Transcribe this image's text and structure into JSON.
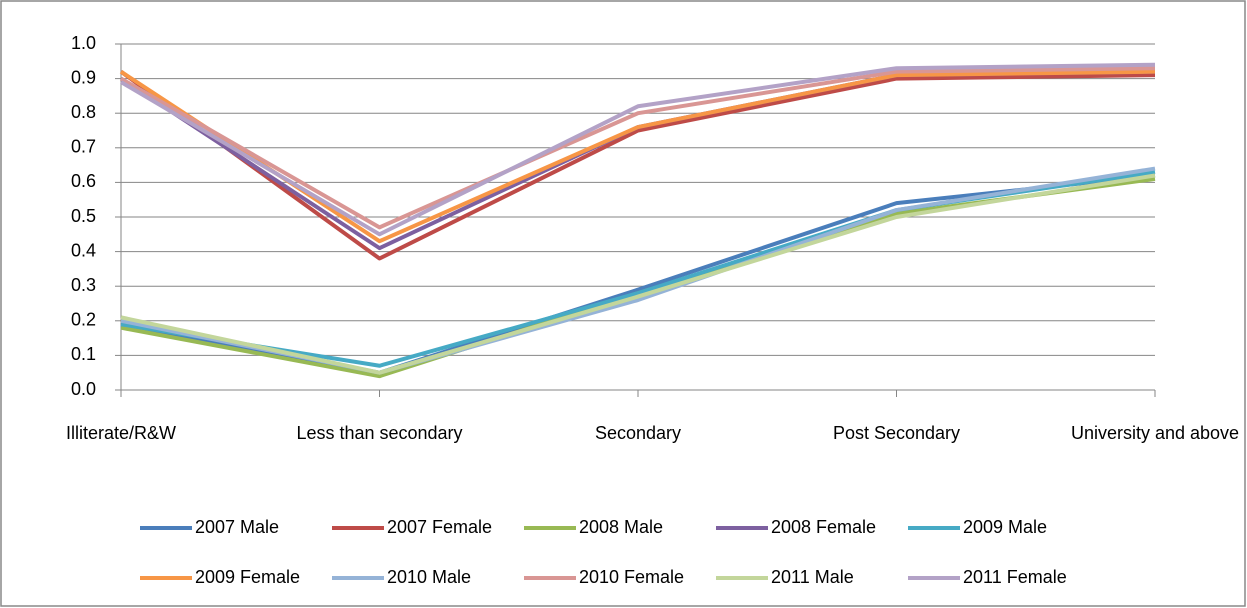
{
  "chart_data": {
    "type": "line",
    "categories": [
      "Illiterate/R&W",
      "Less than secondary",
      "Secondary",
      "Post Secondary",
      "University and above"
    ],
    "series": [
      {
        "name": "2007 Male",
        "color": "#4a7ebb",
        "values": [
          0.19,
          0.05,
          0.29,
          0.54,
          0.62
        ]
      },
      {
        "name": "2007 Female",
        "color": "#be4b48",
        "values": [
          0.92,
          0.38,
          0.75,
          0.9,
          0.91
        ]
      },
      {
        "name": "2008 Male",
        "color": "#98b954",
        "values": [
          0.18,
          0.04,
          0.28,
          0.51,
          0.61
        ]
      },
      {
        "name": "2008 Female",
        "color": "#7d60a0",
        "values": [
          0.9,
          0.41,
          0.76,
          0.91,
          0.92
        ]
      },
      {
        "name": "2009 Male",
        "color": "#46aac5",
        "values": [
          0.19,
          0.07,
          0.28,
          0.52,
          0.63
        ]
      },
      {
        "name": "2009 Female",
        "color": "#f79646",
        "values": [
          0.92,
          0.43,
          0.76,
          0.91,
          0.92
        ]
      },
      {
        "name": "2010 Male",
        "color": "#95b3d7",
        "values": [
          0.2,
          0.05,
          0.26,
          0.52,
          0.64
        ]
      },
      {
        "name": "2010 Female",
        "color": "#d99694",
        "values": [
          0.9,
          0.47,
          0.8,
          0.92,
          0.93
        ]
      },
      {
        "name": "2011 Male",
        "color": "#c3d69b",
        "values": [
          0.21,
          0.05,
          0.27,
          0.5,
          0.62
        ]
      },
      {
        "name": "2011 Female",
        "color": "#b3a2c7",
        "values": [
          0.89,
          0.45,
          0.82,
          0.93,
          0.94
        ]
      }
    ],
    "ylim": [
      0,
      1
    ],
    "yticks": [
      {
        "value": 0,
        "label": "0.0"
      },
      0.1,
      0.2,
      0.3,
      0.4,
      0.5,
      0.6,
      0.7,
      0.8,
      0.9,
      {
        "value": 1,
        "label": "1.0"
      }
    ],
    "grid": true,
    "legend": "bottom"
  }
}
